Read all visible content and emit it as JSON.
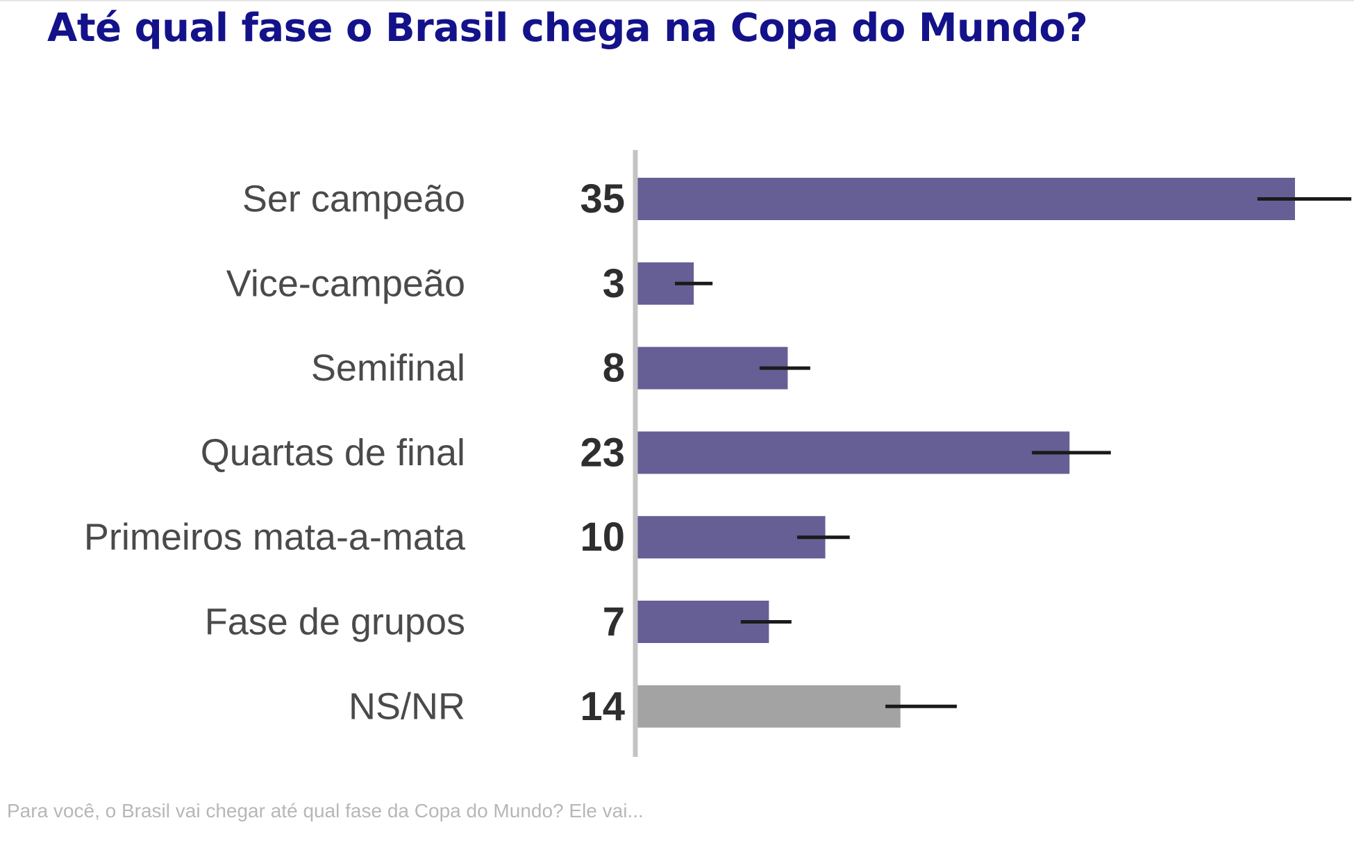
{
  "chart_data": {
    "type": "bar",
    "orientation": "horizontal",
    "title": "Até qual fase o Brasil chega na Copa do Mundo?",
    "categories": [
      "Ser campeão",
      "Vice-campeão",
      "Semifinal",
      "Quartas de final",
      "Primeiros mata-a-mata",
      "Fase de grupos",
      "NS/NR"
    ],
    "values": [
      35,
      3,
      8,
      23,
      10,
      7,
      14
    ],
    "value_labels": [
      "35",
      "3",
      "8",
      "23",
      "10",
      "7",
      "14"
    ],
    "error_range": [
      [
        33,
        38
      ],
      [
        2,
        4
      ],
      [
        6.5,
        9.2
      ],
      [
        21,
        25.2
      ],
      [
        8.5,
        11.3
      ],
      [
        5.5,
        8.2
      ],
      [
        13.2,
        17
      ]
    ],
    "bar_colors": [
      "#655f96",
      "#655f96",
      "#655f96",
      "#655f96",
      "#655f96",
      "#655f96",
      "#a3a3a3"
    ],
    "xlim": [
      0,
      38.5
    ],
    "grid": false,
    "legend": "none",
    "footnote": "Para você, o Brasil vai chegar até qual fase da Copa do Mundo? Ele vai..."
  }
}
